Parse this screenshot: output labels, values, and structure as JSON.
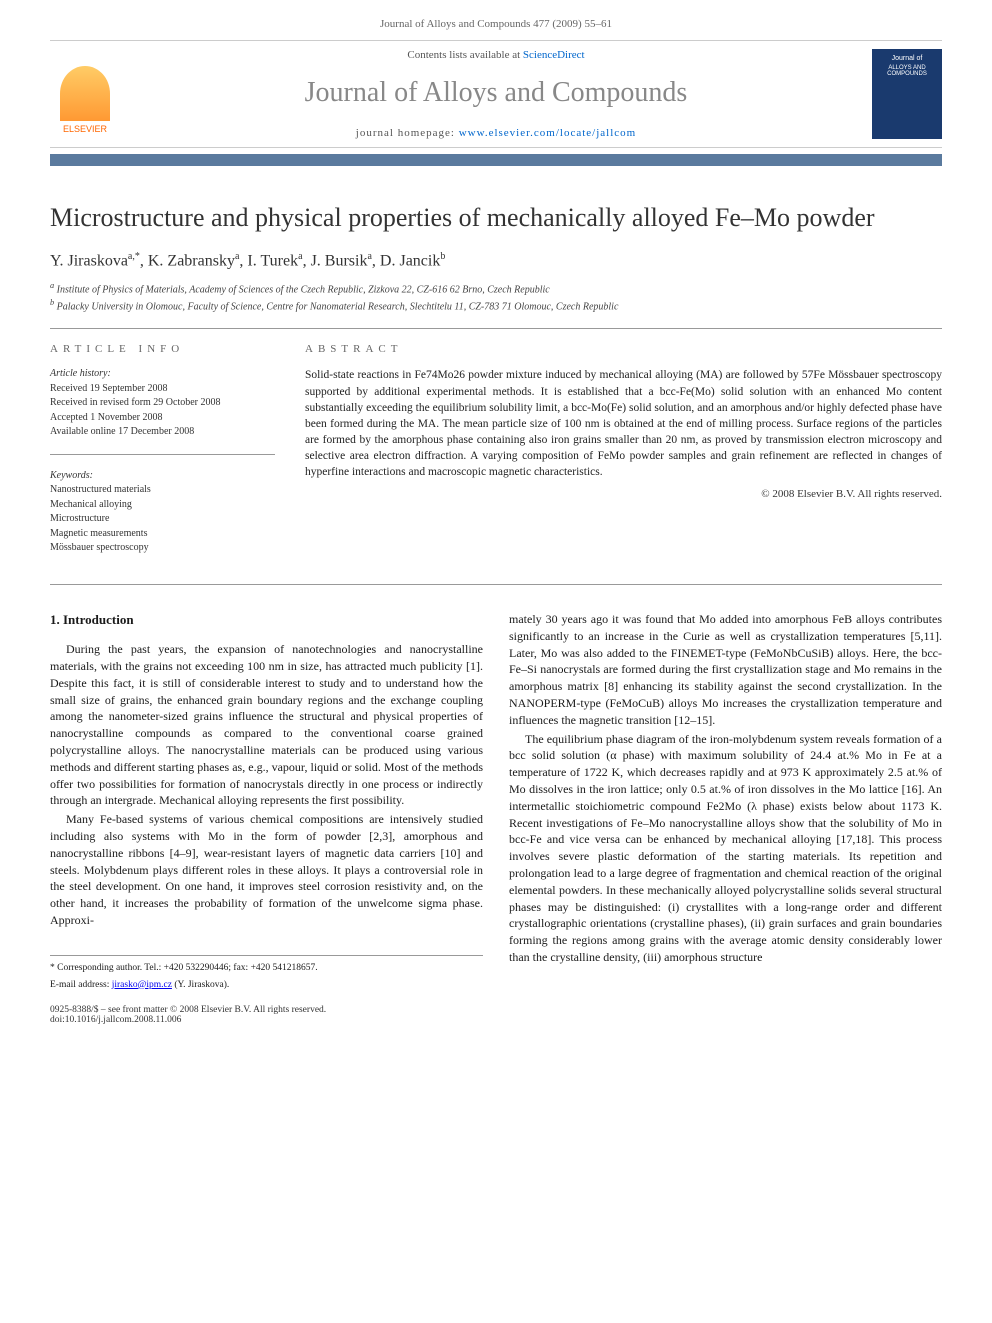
{
  "header": {
    "running": "Journal of Alloys and Compounds 477 (2009) 55–61"
  },
  "banner": {
    "publisher_label": "ELSEVIER",
    "contents_prefix": "Contents lists available at ",
    "contents_link": "ScienceDirect",
    "journal_name": "Journal of Alloys and Compounds",
    "homepage_prefix": "journal homepage: ",
    "homepage_url": "www.elsevier.com/locate/jallcom",
    "cover_small1": "Journal of",
    "cover_small2": "ALLOYS AND COMPOUNDS"
  },
  "title": "Microstructure and physical properties of mechanically alloyed Fe–Mo powder",
  "authors": "Y. Jiraskova",
  "authors_sup1": "a,*",
  "authors_2": ", K. Zabransky",
  "authors_sup2": "a",
  "authors_3": ", I. Turek",
  "authors_sup3": "a",
  "authors_4": ", J. Bursik",
  "authors_sup4": "a",
  "authors_5": ", D. Jancik",
  "authors_sup5": "b",
  "affiliations": {
    "a": "Institute of Physics of Materials, Academy of Sciences of the Czech Republic, Zizkova 22, CZ-616 62 Brno, Czech Republic",
    "b": "Palacky University in Olomouc, Faculty of Science, Centre for Nanomaterial Research, Slechtitelu 11, CZ-783 71 Olomouc, Czech Republic"
  },
  "article_info": {
    "head": "article info",
    "history_label": "Article history:",
    "history": [
      "Received 19 September 2008",
      "Received in revised form 29 October 2008",
      "Accepted 1 November 2008",
      "Available online 17 December 2008"
    ],
    "keywords_label": "Keywords:",
    "keywords": [
      "Nanostructured materials",
      "Mechanical alloying",
      "Microstructure",
      "Magnetic measurements",
      "Mössbauer spectroscopy"
    ]
  },
  "abstract": {
    "head": "abstract",
    "text": "Solid-state reactions in Fe74Mo26 powder mixture induced by mechanical alloying (MA) are followed by 57Fe Mössbauer spectroscopy supported by additional experimental methods. It is established that a bcc-Fe(Mo) solid solution with an enhanced Mo content substantially exceeding the equilibrium solubility limit, a bcc-Mo(Fe) solid solution, and an amorphous and/or highly defected phase have been formed during the MA. The mean particle size of 100 nm is obtained at the end of milling process. Surface regions of the particles are formed by the amorphous phase containing also iron grains smaller than 20 nm, as proved by transmission electron microscopy and selective area electron diffraction. A varying composition of FeMo powder samples and grain refinement are reflected in changes of hyperfine interactions and macroscopic magnetic characteristics.",
    "copyright": "© 2008 Elsevier B.V. All rights reserved."
  },
  "body": {
    "intro_head": "1. Introduction",
    "p1": "During the past years, the expansion of nanotechnologies and nanocrystalline materials, with the grains not exceeding 100 nm in size, has attracted much publicity [1]. Despite this fact, it is still of considerable interest to study and to understand how the small size of grains, the enhanced grain boundary regions and the exchange coupling among the nanometer-sized grains influence the structural and physical properties of nanocrystalline compounds as compared to the conventional coarse grained polycrystalline alloys. The nanocrystalline materials can be produced using various methods and different starting phases as, e.g., vapour, liquid or solid. Most of the methods offer two possibilities for formation of nanocrystals directly in one process or indirectly through an intergrade. Mechanical alloying represents the first possibility.",
    "p2": "Many Fe-based systems of various chemical compositions are intensively studied including also systems with Mo in the form of powder [2,3], amorphous and nanocrystalline ribbons [4–9], wear-resistant layers of magnetic data carriers [10] and steels. Molybdenum plays different roles in these alloys. It plays a controversial role in the steel development. On one hand, it improves steel corrosion resistivity and, on the other hand, it increases the probability of formation of the unwelcome sigma phase. Approxi-",
    "p3": "mately 30 years ago it was found that Mo added into amorphous FeB alloys contributes significantly to an increase in the Curie as well as crystallization temperatures [5,11]. Later, Mo was also added to the FINEMET-type (FeMoNbCuSiB) alloys. Here, the bcc-Fe–Si nanocrystals are formed during the first crystallization stage and Mo remains in the amorphous matrix [8] enhancing its stability against the second crystallization. In the NANOPERM-type (FeMoCuB) alloys Mo increases the crystallization temperature and influences the magnetic transition [12–15].",
    "p4": "The equilibrium phase diagram of the iron-molybdenum system reveals formation of a bcc solid solution (α phase) with maximum solubility of 24.4 at.% Mo in Fe at a temperature of 1722 K, which decreases rapidly and at 973 K approximately 2.5 at.% of Mo dissolves in the iron lattice; only 0.5 at.% of iron dissolves in the Mo lattice [16]. An intermetallic stoichiometric compound Fe2Mo (λ phase) exists below about 1173 K. Recent investigations of Fe–Mo nanocrystalline alloys show that the solubility of Mo in bcc-Fe and vice versa can be enhanced by mechanical alloying [17,18]. This process involves severe plastic deformation of the starting materials. Its repetition and prolongation lead to a large degree of fragmentation and chemical reaction of the original elemental powders. In these mechanically alloyed polycrystalline solids several structural phases may be distinguished: (i) crystallites with a long-range order and different crystallographic orientations (crystalline phases), (ii) grain surfaces and grain boundaries forming the regions among grains with the average atomic density considerably lower than the crystalline density, (iii) amorphous structure"
  },
  "footer": {
    "corr_label": "* Corresponding author. Tel.: +420 532290446; fax: +420 541218657.",
    "email_label": "E-mail address:",
    "email": "jirasko@ipm.cz",
    "email_who": "(Y. Jiraskova).",
    "issn_line": "0925-8388/$ – see front matter © 2008 Elsevier B.V. All rights reserved.",
    "doi": "doi:10.1016/j.jallcom.2008.11.006"
  }
}
